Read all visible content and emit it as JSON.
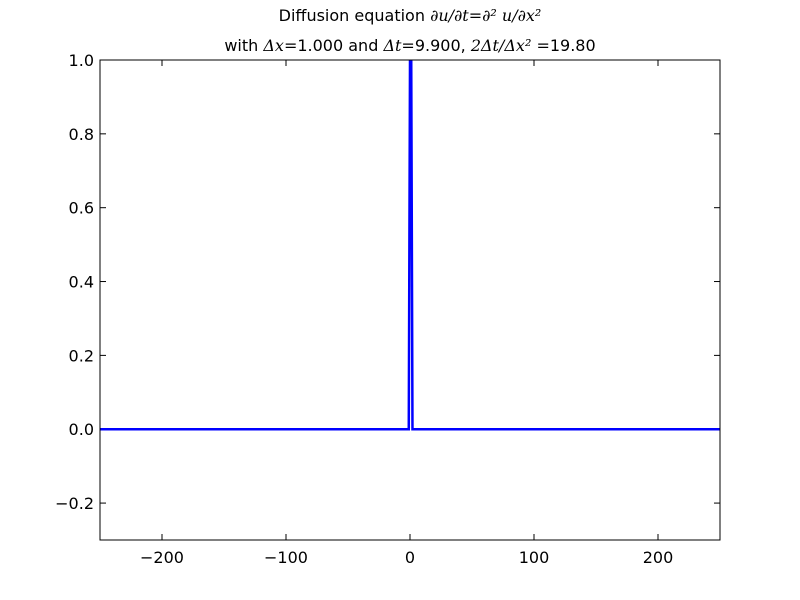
{
  "chart_data": {
    "type": "line",
    "title": {
      "line1_prefix": "Diffusion equation ",
      "line1_math": "∂u/∂t=∂² u/∂x²",
      "line2_p1": "with ",
      "line2_m1": "Δx=",
      "line2_v1": "1.000",
      "line2_p2": " and ",
      "line2_m2": "Δt=",
      "line2_v2": "9.900",
      "line2_p3": ", ",
      "line2_m3": "2Δt/Δx² =",
      "line2_v3": "19.80"
    },
    "xlim": [
      -250,
      250
    ],
    "ylim": [
      -0.3,
      1.0
    ],
    "xticks": [
      -200,
      -100,
      0,
      100,
      200
    ],
    "xtick_labels": [
      "−200",
      "−100",
      "0",
      "100",
      "200"
    ],
    "yticks": [
      1.0,
      0.8,
      0.6,
      0.4,
      0.2,
      0.0,
      -0.2
    ],
    "ytick_labels": [
      "1.0",
      "0.8",
      "0.6",
      "0.4",
      "0.2",
      "0.0",
      "−0.2"
    ],
    "series": [
      {
        "color": "#0000ff",
        "x": [
          -250,
          -1,
          0,
          1,
          2,
          250
        ],
        "y": [
          0,
          0,
          1.0,
          1.0,
          0,
          0
        ]
      }
    ],
    "grid": false
  }
}
